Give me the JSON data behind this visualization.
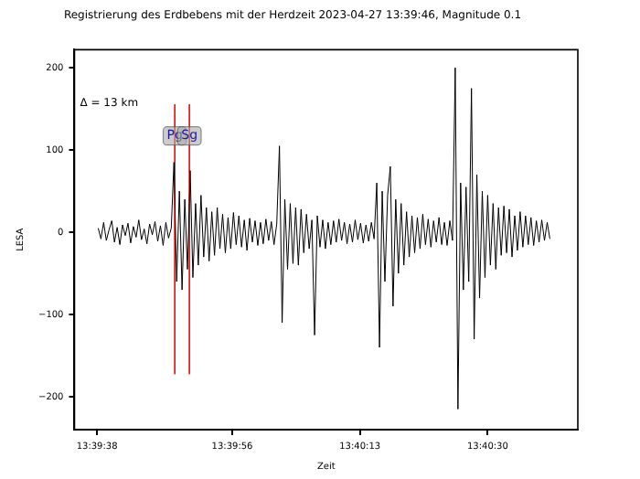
{
  "chart_data": {
    "type": "line",
    "title": "Registrierung des Erdbebens mit der Herdzeit 2023-04-27 13:39:46, Magnitude 0.1",
    "xlabel": "Zeit",
    "ylabel": "LESA",
    "annotations": [
      "Δ = 13 km"
    ],
    "xlim": [
      13.659722,
      13.678333
    ],
    "xticks": [
      {
        "value": 13.660556,
        "label": "13:39:38"
      },
      {
        "value": 13.665556,
        "label": "13:39:56"
      },
      {
        "value": 13.670278,
        "label": "13:40:13"
      },
      {
        "value": 13.675,
        "label": "13:40:30"
      }
    ],
    "ylim": [
      -240,
      222
    ],
    "yticks": [
      -200,
      -100,
      0,
      100,
      200
    ],
    "grid": false,
    "legend": false,
    "marker": "none",
    "line_style": "solid",
    "series": [
      {
        "color": "#000000",
        "x": [
          13.6606,
          13.6607,
          13.6608,
          13.6609,
          13.661,
          13.6611,
          13.6612,
          13.6613,
          13.6614,
          13.6615,
          13.6616,
          13.6617,
          13.6618,
          13.6619,
          13.662,
          13.6621,
          13.6622,
          13.6623,
          13.6624,
          13.6625,
          13.6626,
          13.6627,
          13.6628,
          13.6629,
          13.663,
          13.6631,
          13.6632,
          13.6633,
          13.6634,
          13.6635,
          13.6636,
          13.6637,
          13.6638,
          13.6639,
          13.664,
          13.6641,
          13.6642,
          13.6643,
          13.6644,
          13.6645,
          13.6646,
          13.6647,
          13.6648,
          13.6649,
          13.665,
          13.6651,
          13.6652,
          13.6653,
          13.6654,
          13.6655,
          13.6656,
          13.6657,
          13.6658,
          13.6659,
          13.666,
          13.6661,
          13.6662,
          13.6663,
          13.6664,
          13.6665,
          13.6666,
          13.6667,
          13.6668,
          13.6669,
          13.667,
          13.6671,
          13.6672,
          13.6673,
          13.6674,
          13.6675,
          13.6676,
          13.6677,
          13.6678,
          13.6679,
          13.668,
          13.6681,
          13.6682,
          13.6683,
          13.6684,
          13.6685,
          13.6686,
          13.6687,
          13.6688,
          13.6689,
          13.669,
          13.6691,
          13.6692,
          13.6693,
          13.6694,
          13.6695,
          13.6696,
          13.6697,
          13.6698,
          13.6699,
          13.67,
          13.6701,
          13.6702,
          13.6703,
          13.6704,
          13.6705,
          13.6706,
          13.6707,
          13.6708,
          13.6709,
          13.671,
          13.6711,
          13.6712,
          13.6713,
          13.6714,
          13.6715,
          13.6716,
          13.6717,
          13.6718,
          13.6719,
          13.672,
          13.6721,
          13.6722,
          13.6723,
          13.6724,
          13.6725,
          13.6726,
          13.6727,
          13.6728,
          13.6729,
          13.673,
          13.6731,
          13.6732,
          13.6733,
          13.6734,
          13.6735,
          13.6736,
          13.6737,
          13.6738,
          13.6739,
          13.674,
          13.6741,
          13.6742,
          13.6743,
          13.6744,
          13.6745,
          13.6746,
          13.6747,
          13.6748,
          13.6749,
          13.675,
          13.6751,
          13.6752,
          13.6753,
          13.6754,
          13.6755,
          13.6756,
          13.6757,
          13.6758,
          13.6759,
          13.676,
          13.6761,
          13.6762,
          13.6763,
          13.6764,
          13.6765,
          13.6766,
          13.6767,
          13.6768,
          13.6769,
          13.677,
          13.6771,
          13.6772,
          13.6773
        ],
        "values": [
          5,
          -8,
          12,
          -10,
          3,
          14,
          -12,
          6,
          -15,
          9,
          -4,
          11,
          -13,
          7,
          -6,
          15,
          -9,
          4,
          -14,
          10,
          -3,
          13,
          -11,
          8,
          -16,
          12,
          -7,
          5,
          85,
          -60,
          50,
          -70,
          40,
          -45,
          75,
          -55,
          35,
          -40,
          45,
          -30,
          30,
          -35,
          25,
          -28,
          30,
          -20,
          22,
          -25,
          18,
          -20,
          24,
          -15,
          20,
          -18,
          15,
          -22,
          17,
          -12,
          14,
          -16,
          12,
          -14,
          16,
          -10,
          13,
          -15,
          10,
          105,
          -110,
          40,
          -45,
          35,
          -38,
          30,
          -40,
          28,
          -25,
          22,
          -20,
          15,
          -125,
          20,
          -18,
          15,
          -20,
          12,
          -15,
          14,
          -12,
          16,
          -10,
          12,
          -14,
          10,
          -12,
          15,
          -9,
          11,
          -13,
          9,
          -11,
          12,
          -8,
          60,
          -140,
          50,
          -60,
          45,
          80,
          -90,
          40,
          -50,
          35,
          -40,
          25,
          -30,
          20,
          -25,
          18,
          -20,
          22,
          -15,
          16,
          -18,
          14,
          -12,
          18,
          -15,
          12,
          -16,
          14,
          -10,
          200,
          -215,
          60,
          -70,
          55,
          -60,
          175,
          -130,
          70,
          -80,
          50,
          -55,
          45,
          -40,
          35,
          -45,
          30,
          -28,
          32,
          -25,
          28,
          -30,
          20,
          -22,
          25,
          -18,
          20,
          -15,
          18,
          -16,
          14,
          -12,
          15,
          -10,
          12,
          -8
        ]
      },
      {
        "name": "Pg",
        "color": "#ff0000",
        "x": [
          13.66343,
          13.66343
        ],
        "values": [
          155,
          -172
        ]
      },
      {
        "name": "Sg",
        "color": "#ff0000",
        "x": [
          13.66397,
          13.66397
        ],
        "values": [
          155,
          -172
        ]
      }
    ]
  }
}
